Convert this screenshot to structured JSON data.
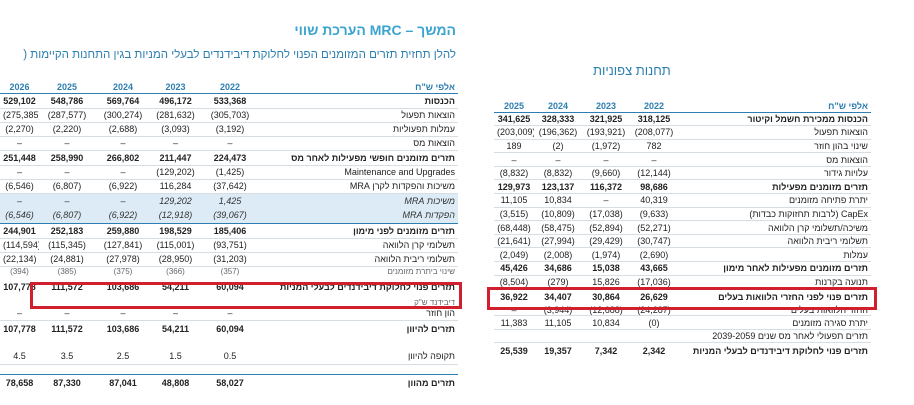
{
  "left": {
    "title": "הערכת שווי MRC – המשך",
    "subtitle": "להלן תחזית תזרים המזומנים הפנוי לחלוקת דיבידנדים לבעלי המניות בגין התחנות הקיימות (",
    "unit_label": "אלפי ש\"ח",
    "years": [
      "2022",
      "2023",
      "2024",
      "2025",
      "2026"
    ],
    "rows": [
      {
        "label": "הכנסות",
        "values": [
          "533,368",
          "496,172",
          "569,764",
          "548,786",
          "529,102"
        ]
      },
      {
        "label": "הוצאות תפעול",
        "values": [
          "(305,703)",
          "(281,632)",
          "(300,274)",
          "(287,577)",
          "(275,385)"
        ]
      },
      {
        "label": "עמלות תפעוליות",
        "values": [
          "(3,192)",
          "(3,093)",
          "(2,688)",
          "(2,220)",
          "(2,270)"
        ]
      },
      {
        "label": "הוצאות מס",
        "values": [
          "–",
          "–",
          "–",
          "–",
          "–"
        ]
      },
      {
        "label": "תזרים מזומנים חופשי מפעילות לאחר מס",
        "values": [
          "224,473",
          "211,447",
          "266,802",
          "258,990",
          "251,448"
        ]
      },
      {
        "label": "Maintenance and Upgrades",
        "values": [
          "(1,425)",
          "(129,202)",
          "–",
          "–",
          "–"
        ]
      },
      {
        "label": "משיכות והפקדות לקרן MRA",
        "values": [
          "(37,642)",
          "116,284",
          "(6,922)",
          "(6,807)",
          "(6,546)"
        ]
      },
      {
        "label": "משיכות MRA",
        "values": [
          "1,425",
          "129,202",
          "–",
          "–",
          "–"
        ]
      },
      {
        "label": "הפקדות MRA",
        "values": [
          "(39,067)",
          "(12,918)",
          "(6,922)",
          "(6,807)",
          "(6,546)"
        ]
      },
      {
        "label": "תזרים מזומנים לפני מימון",
        "values": [
          "185,406",
          "198,529",
          "259,880",
          "252,183",
          "244,901"
        ]
      },
      {
        "label": "תשלומי קרן הלוואה",
        "values": [
          "(93,751)",
          "(115,001)",
          "(127,841)",
          "(115,345)",
          "(114,594)"
        ]
      },
      {
        "label": "תשלומי ריבית הלוואה",
        "values": [
          "(31,203)",
          "(28,950)",
          "(27,978)",
          "(24,881)",
          "(22,134)"
        ]
      },
      {
        "label": "שינוי ביתרת מזומנים",
        "values": [
          "(357)",
          "(366)",
          "(375)",
          "(385)",
          "(394)"
        ]
      },
      {
        "label": "תזרים פנוי לחלוקת דיבידנדים לבעלי המניות",
        "values": [
          "60,094",
          "54,211",
          "103,686",
          "111,572",
          "107,778"
        ]
      },
      {
        "label": "דיבידנד ש\"ק",
        "values": [
          "",
          "",
          "",
          "",
          ""
        ]
      },
      {
        "label": "הון חוזר",
        "values": [
          "–",
          "–",
          "–",
          "–",
          "–"
        ]
      },
      {
        "label": "תזרים להיוון",
        "values": [
          "60,094",
          "54,211",
          "103,686",
          "111,572",
          "107,778"
        ]
      },
      {
        "label": "תקופה להיוון",
        "values": [
          "0.5",
          "1.5",
          "2.5",
          "3.5",
          "4.5"
        ]
      },
      {
        "label": "תזרים מהוון",
        "values": [
          "58,027",
          "48,808",
          "87,041",
          "87,330",
          "78,658"
        ]
      }
    ]
  },
  "right": {
    "title": "תחנות צפוניות",
    "unit_label": "אלפי ש\"ח",
    "years": [
      "2022",
      "2023",
      "2024",
      "2025"
    ],
    "rows": [
      {
        "label": "הכנסות ממכירת חשמל וקיטור",
        "values": [
          "318,125",
          "321,925",
          "328,333",
          "341,625"
        ]
      },
      {
        "label": "הוצאות תפעול",
        "values": [
          "(208,077)",
          "(193,921)",
          "(196,362)",
          "(203,009)"
        ]
      },
      {
        "label": "שינוי בהון חוזר",
        "values": [
          "782",
          "(1,972)",
          "(2)",
          "189"
        ]
      },
      {
        "label": "הוצאות מס",
        "values": [
          "–",
          "–",
          "–",
          "–"
        ]
      },
      {
        "label": "עלויות גידור",
        "values": [
          "(12,144)",
          "(9,660)",
          "(8,832)",
          "(8,832)"
        ]
      },
      {
        "label": "תזרים מזומנים מפעילות",
        "values": [
          "98,686",
          "116,372",
          "123,137",
          "129,973"
        ]
      },
      {
        "label": "יתרת פתיחה מזומנים",
        "values": [
          "40,319",
          "–",
          "10,834",
          "11,105"
        ]
      },
      {
        "label": "CapEx (לרבות תחזוקות כבדות)",
        "values": [
          "(9,633)",
          "(17,038)",
          "(10,809)",
          "(3,515)"
        ]
      },
      {
        "label": "משיכה/תשלומי קרן הלוואה",
        "values": [
          "(52,271)",
          "(52,894)",
          "(58,475)",
          "(68,448)"
        ]
      },
      {
        "label": "תשלומי ריבית הלוואה",
        "values": [
          "(30,747)",
          "(29,429)",
          "(27,994)",
          "(21,641)"
        ]
      },
      {
        "label": "עמלות",
        "values": [
          "(2,690)",
          "(1,974)",
          "(2,008)",
          "(2,049)"
        ]
      },
      {
        "label": "תזרים מזומנים מפעילות לאחר מימון",
        "values": [
          "43,665",
          "15,038",
          "34,686",
          "45,426"
        ]
      },
      {
        "label": "תנועה בקרנות",
        "values": [
          "(17,036)",
          "15,826",
          "(279)",
          "(8,504)"
        ]
      },
      {
        "label": "תזרים פנוי לפני החזרי הלוואות בעלים",
        "values": [
          "26,629",
          "30,864",
          "34,407",
          "36,922"
        ]
      },
      {
        "label": "החזר הלוואות בעלים",
        "values": [
          "(24,287)",
          "(12,688)",
          "(3,944)",
          "–"
        ]
      },
      {
        "label": "יתרת סגירה מזומנים",
        "values": [
          "(0)",
          "10,834",
          "11,105",
          "11,383"
        ]
      },
      {
        "label": "תזרים תפעולי לאחר מס שנים 2039-2059",
        "values": [
          "",
          "",
          "",
          ""
        ]
      },
      {
        "label": "תזרים פנוי לחלוקת דיבידנדים לבעלי המניות",
        "values": [
          "2,342",
          "7,342",
          "19,357",
          "25,539"
        ]
      }
    ]
  }
}
